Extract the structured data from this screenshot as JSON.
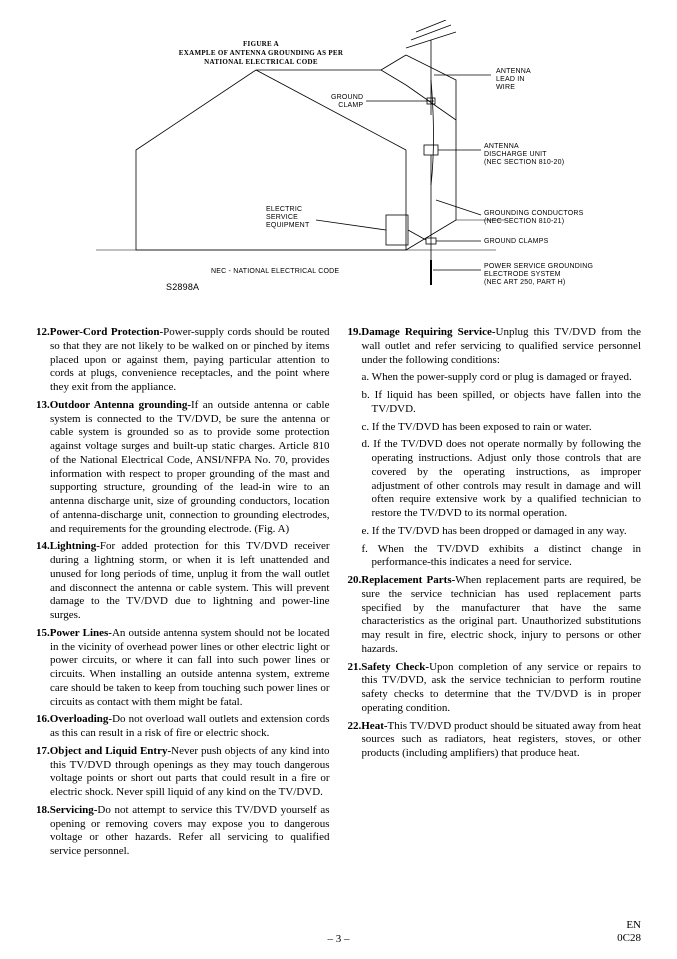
{
  "figure": {
    "caption_line1": "FIGURE A",
    "caption_line2": "EXAMPLE OF ANTENNA GROUNDING AS PER",
    "caption_line3": "NATIONAL ELECTRICAL CODE",
    "labels": {
      "antenna_lead": "ANTENNA\nLEAD IN\nWIRE",
      "ground_clamp_top": "GROUND\nCLAMP",
      "antenna_discharge": "ANTENNA\nDISCHARGE UNIT\n(NEC SECTION 810-20)",
      "electric_service": "ELECTRIC\nSERVICE\nEQUIPMENT",
      "grounding_conductors": "GROUNDING CONDUCTORS\n(NEC SECTION 810-21)",
      "ground_clamps_bottom": "GROUND CLAMPS",
      "power_service": "POWER SERVICE GROUNDING\nELECTRODE SYSTEM\n(NEC ART 250, PART H)",
      "nec_note": "NEC - NATIONAL ELECTRICAL CODE",
      "model": "S2898A"
    }
  },
  "left_items": [
    {
      "n": "12.",
      "t": "Power-Cord Protection-",
      "b": "Power-supply cords should be routed so that they are not likely to be walked on or pinched by items placed upon or against them, paying particular attention to cords at plugs, convenience receptacles, and the point where they exit from the appliance."
    },
    {
      "n": "13.",
      "t": "Outdoor Antenna grounding-",
      "b": "If an outside antenna or cable system is connected to the TV/DVD, be sure the antenna or cable system is grounded so as to provide some protection against voltage surges and built-up static charges. Article 810 of the National Electrical Code, ANSI/NFPA No. 70, provides information with respect to proper grounding of the mast and supporting structure, grounding of the lead-in wire to an antenna discharge unit, size of grounding conductors, location of antenna-discharge unit, connection to grounding electrodes, and requirements for the grounding electrode. (Fig. A)"
    },
    {
      "n": "14.",
      "t": "Lightning-",
      "b": "For added protection for this TV/DVD receiver during a lightning storm, or when it is left unattended and unused for long periods of time, unplug it from the wall outlet and disconnect the antenna or cable system. This will prevent damage to the TV/DVD due to lightning and power-line surges."
    },
    {
      "n": "15.",
      "t": "Power Lines-",
      "b": "An outside antenna system should not be located in the vicinity of overhead power lines or other electric light or power circuits, or where it can fall into such power lines or circuits. When installing an outside antenna system, extreme care should be taken to keep from touching such power lines or circuits as contact with them might be fatal."
    },
    {
      "n": "16.",
      "t": "Overloading-",
      "b": "Do not overload wall outlets and extension cords as this can result in a risk of fire or electric shock."
    },
    {
      "n": "17.",
      "t": "Object and Liquid Entry-",
      "b": "Never push objects of any kind into this TV/DVD through openings as they may touch dangerous voltage points or short out parts that could result in a fire or electric shock. Never spill liquid of any kind on the TV/DVD."
    },
    {
      "n": "18.",
      "t": "Servicing-",
      "b": "Do not attempt to service this TV/DVD yourself as opening or removing covers may expose you to dangerous voltage or other hazards. Refer all servicing to qualified service personnel."
    }
  ],
  "right_head": {
    "n": "19.",
    "t": "Damage Requiring Service-",
    "b": "Unplug this TV/DVD from the wall outlet and refer servicing to qualified service personnel under the following conditions:"
  },
  "right_subs": [
    {
      "l": "a.",
      "b": "When the power-supply cord or plug is damaged or frayed."
    },
    {
      "l": "b.",
      "b": "If liquid has been spilled, or objects have fallen into the TV/DVD."
    },
    {
      "l": "c.",
      "b": "If the TV/DVD has been exposed to rain or water."
    },
    {
      "l": "d.",
      "b": "If the TV/DVD does not operate normally by following the operating instructions. Adjust only those controls that are covered by the operating instructions, as improper adjustment of other controls may result in damage and will often require extensive work by a qualified technician to restore the TV/DVD to its normal operation."
    },
    {
      "l": "e.",
      "b": "If the TV/DVD has been dropped or damaged in any way."
    },
    {
      "l": "f.",
      "b": "When the TV/DVD exhibits a distinct change in performance-this indicates a need for service."
    }
  ],
  "right_items": [
    {
      "n": "20.",
      "t": "Replacement Parts-",
      "b": "When replacement parts are required, be sure the service technician has used replacement parts specified by the manufacturer that have the same characteristics as the original part. Unauthorized substitutions may result in fire, electric shock, injury to persons or other hazards."
    },
    {
      "n": "21.",
      "t": "Safety Check-",
      "b": "Upon completion of any service or repairs to this TV/DVD, ask the service technician to perform routine safety checks to determine that the TV/DVD is in proper operating condition."
    },
    {
      "n": "22.",
      "t": "Heat-",
      "b": "This TV/DVD product should be situated away from heat sources such as radiators, heat registers, stoves, or other products (including amplifiers) that produce heat."
    }
  ],
  "footer": {
    "page": "– 3 –",
    "lang": "EN",
    "code": "0C28"
  }
}
